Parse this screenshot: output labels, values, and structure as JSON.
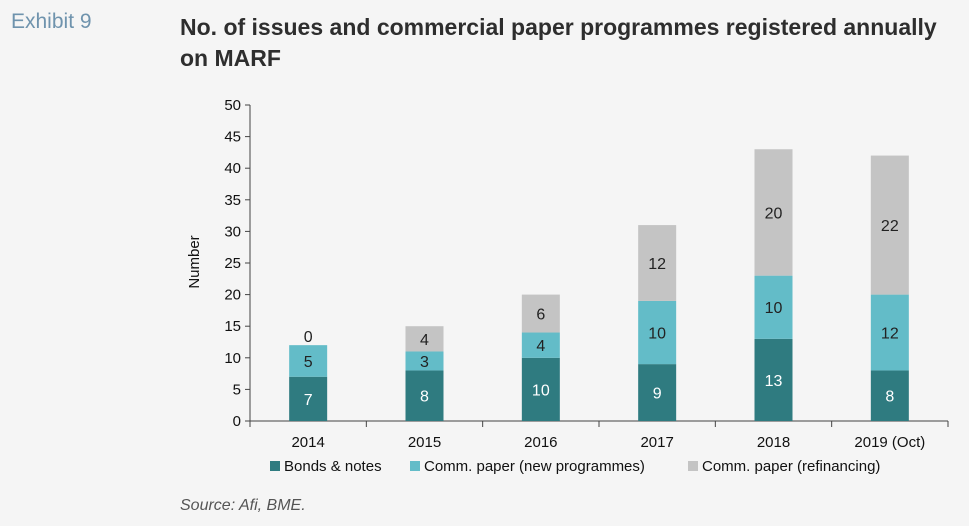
{
  "header": {
    "exhibit": "Exhibit 9",
    "title": "No. of issues and commercial paper programmes registered annually on MARF"
  },
  "footer": {
    "source": "Source: Afi, BME."
  },
  "colors": {
    "bonds": "#2f7b80",
    "new_programmes": "#63bcc8",
    "refinancing": "#c4c4c4",
    "background": "#f5f5f5"
  },
  "chart_data": {
    "type": "bar",
    "stacked": true,
    "categories": [
      "2014",
      "2015",
      "2016",
      "2017",
      "2018",
      "2019 (Oct)"
    ],
    "series": [
      {
        "name": "Bonds & notes",
        "values": [
          7,
          8,
          10,
          9,
          13,
          8
        ]
      },
      {
        "name": "Comm. paper (new programmes)",
        "values": [
          5,
          3,
          4,
          10,
          10,
          12
        ]
      },
      {
        "name": "Comm. paper (refinancing)",
        "values": [
          0,
          4,
          6,
          12,
          20,
          22
        ]
      }
    ],
    "title": "No. of issues and commercial paper programmes registered annually on MARF",
    "xlabel": "",
    "ylabel": "Number",
    "ylim": [
      0,
      50
    ],
    "yticks": [
      0,
      5,
      10,
      15,
      20,
      25,
      30,
      35,
      40,
      45,
      50
    ],
    "grid": false,
    "legend_position": "bottom"
  }
}
